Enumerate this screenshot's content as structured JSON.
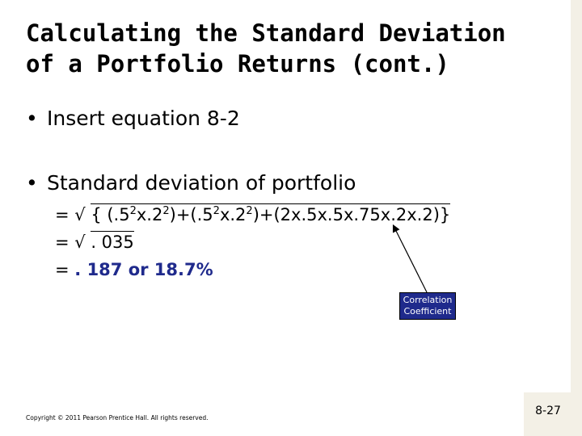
{
  "title": {
    "line1": "Calculating the Standard Deviation",
    "line2": "of a Portfolio Returns (cont.)"
  },
  "bullets": [
    {
      "marker": "•",
      "text": "Insert equation 8-2"
    },
    {
      "marker": "•",
      "text": "Standard deviation of portfolio"
    }
  ],
  "equation": {
    "line1": {
      "prefix": "= √ ",
      "segments": [
        "{ (.5",
        "2",
        "x.2",
        "2",
        ")+(.5",
        "2",
        "x.2",
        "2",
        ")+(2x.5x.5x.75x.2x.2)}"
      ]
    },
    "line2": {
      "prefix": "= √ ",
      "radicand": ". 035"
    },
    "line3": {
      "prefix": "= ",
      "result": ". 187 or 18.7%"
    }
  },
  "callout": {
    "line1": "Correlation",
    "line2": "Coefficient",
    "bg_color": "#1f2a8c"
  },
  "footer": "Copyright © 2011 Pearson Prentice Hall. All rights reserved.",
  "page_number": "8-27"
}
